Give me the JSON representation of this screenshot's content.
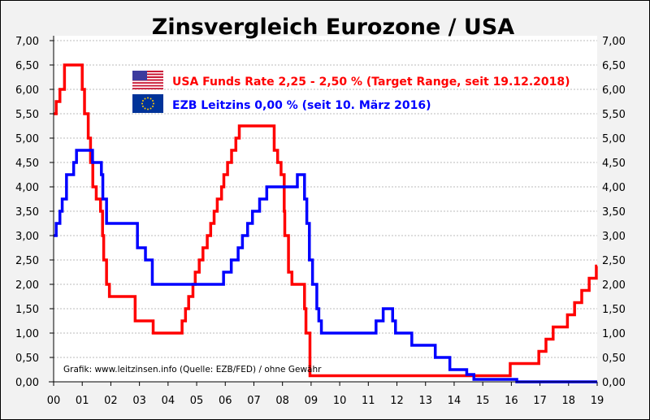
{
  "chart_data": {
    "type": "line",
    "title": "Zinsvergleich Eurozone / USA",
    "xlabel": "",
    "ylabel": "",
    "x_tick_labels": [
      "00",
      "01",
      "02",
      "03",
      "04",
      "05",
      "06",
      "07",
      "08",
      "09",
      "10",
      "11",
      "12",
      "13",
      "14",
      "15",
      "16",
      "17",
      "18",
      "19"
    ],
    "y_tick_labels": [
      "0,00",
      "0,50",
      "1,00",
      "1,50",
      "2,00",
      "2,50",
      "3,00",
      "3,50",
      "4,00",
      "4,50",
      "5,00",
      "5,50",
      "6,00",
      "6,50",
      "7,00"
    ],
    "xlim": [
      2000,
      2019
    ],
    "ylim": [
      0,
      7
    ],
    "grid": true,
    "legend_placement": "top-center",
    "source_note": "Grafik: www.leitzinsen.info (Quelle: EZB/FED) / ohne Gewähr",
    "series": [
      {
        "name": "USA Funds Rate 2,25 - 2,50 % (Target Range, seit 19.12.2018)",
        "color": "#ff0000",
        "icon": "us-flag-icon",
        "x": [
          2000.0,
          2000.09,
          2000.22,
          2000.38,
          2001.0,
          2001.08,
          2001.21,
          2001.29,
          2001.37,
          2001.49,
          2001.64,
          2001.71,
          2001.75,
          2001.85,
          2001.95,
          2002.85,
          2003.48,
          2004.49,
          2004.61,
          2004.72,
          2004.87,
          2004.95,
          2005.09,
          2005.22,
          2005.37,
          2005.49,
          2005.61,
          2005.72,
          2005.87,
          2005.95,
          2006.08,
          2006.22,
          2006.37,
          2006.49,
          2007.71,
          2007.83,
          2007.95,
          2008.06,
          2008.08,
          2008.21,
          2008.33,
          2008.77,
          2008.82,
          2008.96,
          2015.96,
          2016.96,
          2017.21,
          2017.46,
          2017.96,
          2018.21,
          2018.46,
          2018.72,
          2018.97,
          2019.0
        ],
        "values": [
          5.5,
          5.75,
          6.0,
          6.5,
          6.0,
          5.5,
          5.0,
          4.5,
          4.0,
          3.75,
          3.5,
          3.0,
          2.5,
          2.0,
          1.75,
          1.25,
          1.0,
          1.25,
          1.5,
          1.75,
          2.0,
          2.25,
          2.5,
          2.75,
          3.0,
          3.25,
          3.5,
          3.75,
          4.0,
          4.25,
          4.5,
          4.75,
          5.0,
          5.25,
          4.75,
          4.5,
          4.25,
          3.5,
          3.0,
          2.25,
          2.0,
          1.5,
          1.0,
          0.125,
          0.375,
          0.625,
          0.875,
          1.125,
          1.375,
          1.625,
          1.875,
          2.125,
          2.375,
          2.375
        ]
      },
      {
        "name": "EZB Leitzins 0,00 % (seit 10. März 2016)",
        "color": "#0000ff",
        "icon": "eu-flag-icon",
        "x": [
          2000.0,
          2000.09,
          2000.22,
          2000.3,
          2000.45,
          2000.7,
          2000.8,
          2001.36,
          2001.67,
          2001.72,
          2001.85,
          2002.93,
          2003.21,
          2003.45,
          2005.94,
          2006.21,
          2006.45,
          2006.6,
          2006.78,
          2006.95,
          2007.2,
          2007.45,
          2008.52,
          2008.77,
          2008.85,
          2008.94,
          2009.05,
          2009.2,
          2009.27,
          2009.36,
          2011.27,
          2011.52,
          2011.85,
          2011.95,
          2012.52,
          2013.34,
          2013.85,
          2014.44,
          2014.69,
          2016.19,
          2019.0
        ],
        "values": [
          3.0,
          3.25,
          3.5,
          3.75,
          4.25,
          4.5,
          4.75,
          4.5,
          4.25,
          3.75,
          3.25,
          2.75,
          2.5,
          2.0,
          2.25,
          2.5,
          2.75,
          3.0,
          3.25,
          3.5,
          3.75,
          4.0,
          4.25,
          3.75,
          3.25,
          2.5,
          2.0,
          1.5,
          1.25,
          1.0,
          1.25,
          1.5,
          1.25,
          1.0,
          0.75,
          0.5,
          0.25,
          0.15,
          0.05,
          0.0,
          0.0
        ]
      }
    ]
  }
}
